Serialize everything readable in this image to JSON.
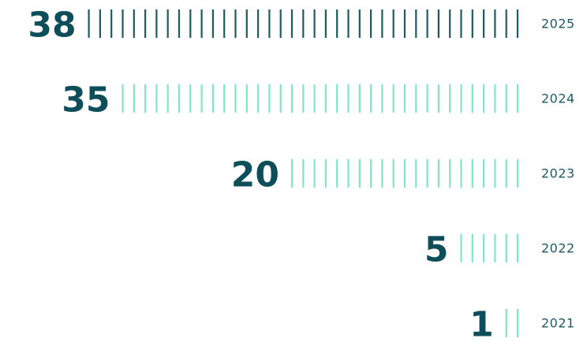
{
  "chart_data": {
    "type": "bar",
    "orientation": "horizontal",
    "categories": [
      "2025",
      "2024",
      "2023",
      "2022",
      "2021"
    ],
    "values": [
      38,
      35,
      20,
      5,
      1
    ],
    "colors": [
      "#1f5a63",
      "#7fe6c6",
      "#7fe6c6",
      "#7fe6c6",
      "#7fe6c6"
    ]
  }
}
